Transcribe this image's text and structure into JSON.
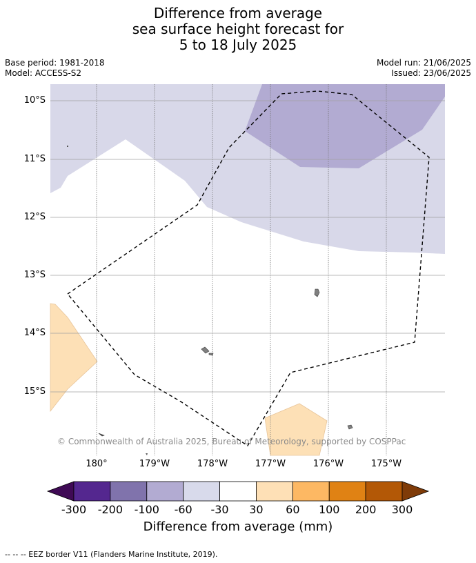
{
  "title": {
    "line1": "Difference from average",
    "line2": "sea surface height forecast for",
    "line3": "5 to 18 July 2025"
  },
  "meta": {
    "base_period": "Base period: 1981-2018",
    "model": "Model: ACCESS-S2",
    "model_run": "Model run: 21/06/2025",
    "issued": "Issued: 23/06/2025"
  },
  "map": {
    "lat_labels": [
      "10°S",
      "11°S",
      "12°S",
      "13°S",
      "14°S",
      "15°S"
    ],
    "lon_labels": [
      "180°",
      "179°W",
      "178°W",
      "177°W",
      "176°W",
      "175°W"
    ],
    "copyright": "© Commonwealth of Australia 2025, Bureau of Meteorology, supported by COSPPac",
    "colors": {
      "anomaly_minus_100_to_minus_60": "#b2abd2",
      "anomaly_minus_60_to_minus_30": "#d8d8e9",
      "anomaly_30_to_60": "#fde0b6",
      "land": "#808080",
      "eez_border": "#000000"
    }
  },
  "colorbar": {
    "ticks": [
      "-300",
      "-200",
      "-100",
      "-60",
      "-30",
      "30",
      "60",
      "100",
      "200",
      "300"
    ],
    "colors": [
      "#3f0a55",
      "#54278f",
      "#8073ac",
      "#b2abd2",
      "#d8daeb",
      "#ffffff",
      "#fee0b6",
      "#fdb863",
      "#e08214",
      "#b35806",
      "#7f3b08"
    ],
    "title": "Difference from average (mm)"
  },
  "footer": {
    "legend": "--  --  -- EEZ border V11 (Flanders Marine Institute, 2019)."
  }
}
